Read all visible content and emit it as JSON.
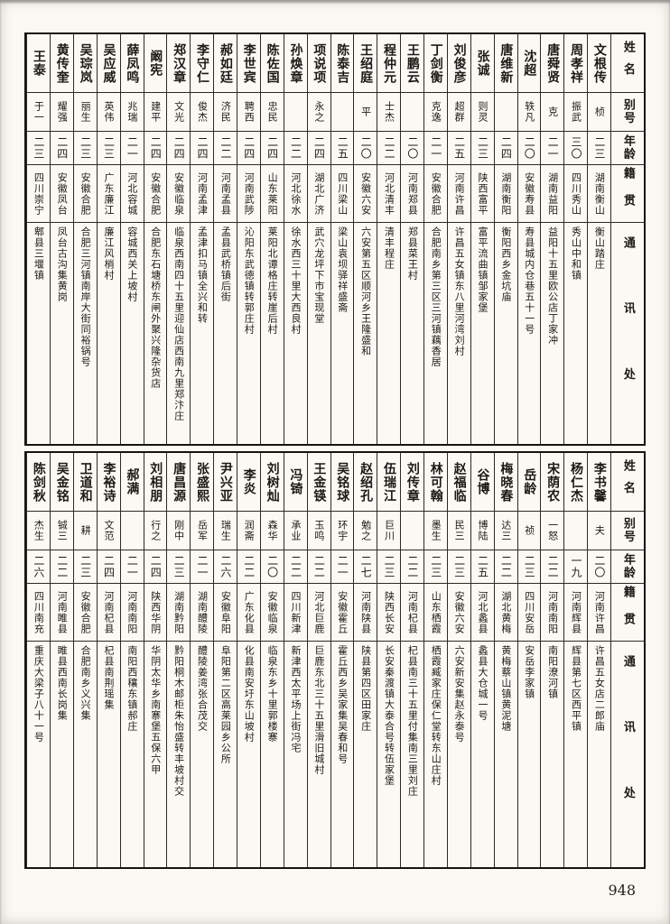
{
  "page": {
    "number": "948"
  },
  "headers": {
    "name": "姓名",
    "alias": "别号",
    "age": "年龄",
    "origin": "籍贯",
    "address": "通讯处"
  },
  "tables": [
    {
      "entries": [
        {
          "name": "文根传",
          "alias": "桢",
          "age": "二三",
          "origin": "湖南衡山",
          "address": "衡山踏庄"
        },
        {
          "name": "周孝祥",
          "alias": "振武",
          "age": "三〇",
          "origin": "四川秀山",
          "address": "秀山中和镇"
        },
        {
          "name": "唐舜贤",
          "alias": "克",
          "age": "二一",
          "origin": "湖南益阳",
          "address": "益阳十五里欧公店丁家冲"
        },
        {
          "name": "沈超",
          "alias": "轶凡",
          "age": "二〇",
          "origin": "安徽寿县",
          "address": "寿县城内仓巷五十一号"
        },
        {
          "name": "唐维新",
          "alias": "",
          "age": "二四",
          "origin": "湖南衡阳",
          "address": "衡阳西乡金坑庙"
        },
        {
          "name": "张诚",
          "alias": "则灵",
          "age": "二三",
          "origin": "陕西富平",
          "address": "富平流曲镇邹家堡"
        },
        {
          "name": "刘俊彦",
          "alias": "超群",
          "age": "二五",
          "origin": "河南许昌",
          "address": "许昌五女镇东八里河湾刘村"
        },
        {
          "name": "丁剑衡",
          "alias": "克逸",
          "age": "二一",
          "origin": "安徽合肥",
          "address": "合肥南乡第三区三河镇藕香居"
        },
        {
          "name": "王鹏云",
          "alias": "",
          "age": "二〇",
          "origin": "河南郑县",
          "address": "郑县菜王村"
        },
        {
          "name": "程仲元",
          "alias": "士杰",
          "age": "二二",
          "origin": "河北清丰",
          "address": "清丰程庄"
        },
        {
          "name": "王绍庭",
          "alias": "平",
          "age": "二〇",
          "origin": "安徽六安",
          "address": "六安第五区顺河乡王隆盛和"
        },
        {
          "name": "陈泰吉",
          "alias": "",
          "age": "二五",
          "origin": "四川梁山",
          "address": "梁山袁坝驿祥盛斋"
        },
        {
          "name": "项说项",
          "alias": "永之",
          "age": "二四",
          "origin": "湖北广济",
          "address": "武穴龙坪下市宝现堂"
        },
        {
          "name": "孙焕章",
          "alias": "",
          "age": "二二",
          "origin": "河北徐水",
          "address": "徐水西三十里大西良村"
        },
        {
          "name": "陈佐国",
          "alias": "忠民",
          "age": "二四",
          "origin": "山东莱阳",
          "address": "莱阳北谭格庄转崖后村"
        },
        {
          "name": "李世宾",
          "alias": "聘西",
          "age": "二四",
          "origin": "河南武陟",
          "address": "沁阳东武德镇转郭庄村"
        },
        {
          "name": "郝如廷",
          "alias": "济民",
          "age": "二二",
          "origin": "河南孟县",
          "address": "孟县武桥镇后街"
        },
        {
          "name": "李守仁",
          "alias": "俊杰",
          "age": "二四",
          "origin": "河南孟津",
          "address": "孟津扣马镇全兴和转"
        },
        {
          "name": "郑汉章",
          "alias": "文光",
          "age": "二四",
          "origin": "安徽临泉",
          "address": "临泉西南四十五里迎仙店西南九里郑汴庄"
        },
        {
          "name": "阚宪",
          "alias": "建平",
          "age": "二四",
          "origin": "安徽合肥",
          "address": "合肥东石塘桥东闸外聚兴隆杂货店"
        },
        {
          "name": "薛凤鸣",
          "alias": "兆瑞",
          "age": "二一",
          "origin": "河北容城",
          "address": "容城西关上坡村"
        },
        {
          "name": "吴应威",
          "alias": "英伟",
          "age": "二三",
          "origin": "广东廉江",
          "address": "廉江风梢村"
        },
        {
          "name": "吴琮岚",
          "alias": "丽生",
          "age": "二三",
          "origin": "安徽合肥",
          "address": "合肥三河镇南岸大街同裕锅号"
        },
        {
          "name": "黄传奎",
          "alias": "耀强",
          "age": "二四",
          "origin": "安徽凤台",
          "address": "凤台古沟集黄岗"
        },
        {
          "name": "王泰",
          "alias": "于一",
          "age": "二三",
          "origin": "四川崇宁",
          "address": "郫县三堰镇"
        }
      ]
    },
    {
      "entries": [
        {
          "name": "李书馨",
          "alias": "夫",
          "age": "二〇",
          "origin": "河南许昌",
          "address": "许昌五女店二郎庙"
        },
        {
          "name": "杨仁杰",
          "alias": "",
          "age": "一九",
          "origin": "河南辉县",
          "address": "辉县第七区西平镇"
        },
        {
          "name": "宋荫农",
          "alias": "一怒",
          "age": "二二",
          "origin": "河南南阳",
          "address": "南阳潦河镇"
        },
        {
          "name": "岳龄",
          "alias": "祯",
          "age": "二三",
          "origin": "四川安岳",
          "address": "安岳李家镇"
        },
        {
          "name": "梅晓春",
          "alias": "达三",
          "age": "二二",
          "origin": "湖北黄梅",
          "address": "黄梅蔡山镇黄泥塘"
        },
        {
          "name": "谷博",
          "alias": "博陆",
          "age": "二五",
          "origin": "河北蠡县",
          "address": "蠡县大仓城一号"
        },
        {
          "name": "赵福临",
          "alias": "民三",
          "age": "二三",
          "origin": "安徽六安",
          "address": "六安新安集赵永泰号"
        },
        {
          "name": "林可翰",
          "alias": "墨生",
          "age": "二三",
          "origin": "山东栖霞",
          "address": "栖霞臧家庄保仁堂转东山庄村"
        },
        {
          "name": "刘传章",
          "alias": "",
          "age": "二二",
          "origin": "河南杞县",
          "address": "杞县南三十五里付集南三里刘庄"
        },
        {
          "name": "伍瑞江",
          "alias": "巨川",
          "age": "二三",
          "origin": "陕西长安",
          "address": "长安秦渡镇大泰合号转伍家堡"
        },
        {
          "name": "赵绍孔",
          "alias": "勉之",
          "age": "二七",
          "origin": "河南陕县",
          "address": "陕县第四区田家庄"
        },
        {
          "name": "吴铭球",
          "alias": "环宇",
          "age": "二一",
          "origin": "安徽霍丘",
          "address": "霍丘西乡吴家集吴春和号"
        },
        {
          "name": "王金锳",
          "alias": "玉鸣",
          "age": "二二",
          "origin": "河北巨鹿",
          "address": "巨鹿东北三十五里滑旧城村"
        },
        {
          "name": "冯锜",
          "alias": "承业",
          "age": "二二",
          "origin": "四川新津",
          "address": "新津西太平场上街冯宅"
        },
        {
          "name": "刘树灿",
          "alias": "森华",
          "age": "二〇",
          "origin": "安徽临泉",
          "address": "临泉东乡十里郭楼寨"
        },
        {
          "name": "李炎",
          "alias": "润斋",
          "age": "二二",
          "origin": "广东化县",
          "address": "化县南安圩东山坡村"
        },
        {
          "name": "尹兴亚",
          "alias": "瑞生",
          "age": "二六",
          "origin": "安徽阜阳",
          "address": "阜阳第二区高莱园乡公所"
        },
        {
          "name": "张盛熙",
          "alias": "岳军",
          "age": "二一",
          "origin": "湖南醴陵",
          "address": "醴陵姜湾张合茂交"
        },
        {
          "name": "唐昌源",
          "alias": "刚中",
          "age": "二三",
          "origin": "湖南黔阳",
          "address": "黔阳桐木邮柜朱怡盛转丰坡村交"
        },
        {
          "name": "刘相朋",
          "alias": "行之",
          "age": "二四",
          "origin": "陕西华阴",
          "address": "华阴太华乡南寨堡五保六甲"
        },
        {
          "name": "郝满",
          "alias": "",
          "age": "二一",
          "origin": "河南南阳",
          "address": "南阳西穰东镇郝庄"
        },
        {
          "name": "李裕诗",
          "alias": "文范",
          "age": "二四",
          "origin": "河南杞县",
          "address": "杞县南荆瑶集"
        },
        {
          "name": "卫道和",
          "alias": "耕",
          "age": "二三",
          "origin": "安徽合肥",
          "address": "合肥南乡义兴集"
        },
        {
          "name": "吴金铭",
          "alias": "铖三",
          "age": "二二",
          "origin": "河南睢县",
          "address": "睢县西南长岗集"
        },
        {
          "name": "陈剑秋",
          "alias": "杰生",
          "age": "二六",
          "origin": "四川南充",
          "address": "重庆大梁子八十一号"
        }
      ]
    }
  ]
}
